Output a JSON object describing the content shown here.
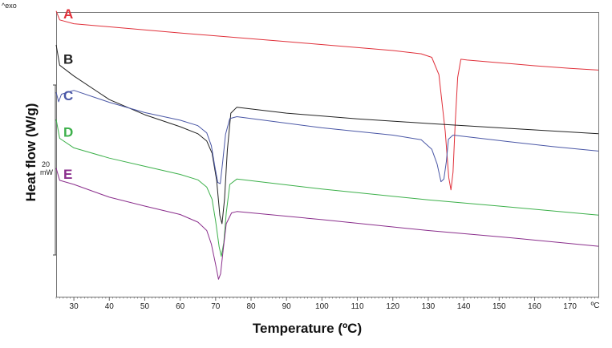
{
  "chart_data": {
    "type": "line",
    "xlabel": "Temperature (ºC)",
    "ylabel": "Heat flow (W/g)",
    "exo_label": "^exo",
    "x_unit_label": "ºC",
    "xlim": [
      25,
      178
    ],
    "x_ticks": [
      30,
      40,
      50,
      60,
      70,
      80,
      90,
      100,
      110,
      120,
      130,
      140,
      150,
      160,
      170
    ],
    "scale_bar": {
      "label_value": "20",
      "label_unit": "mW"
    },
    "series": [
      {
        "name": "A",
        "color": "#e0303a",
        "points": [
          [
            25,
            0.5
          ],
          [
            26,
            3.8
          ],
          [
            30,
            5.2
          ],
          [
            60,
            8.6
          ],
          [
            90,
            11.8
          ],
          [
            120,
            15.1
          ],
          [
            128,
            16.3
          ],
          [
            131,
            17.6
          ],
          [
            133,
            24
          ],
          [
            134.8,
            45
          ],
          [
            135.8,
            62
          ],
          [
            136.4,
            66.5
          ],
          [
            137,
            60
          ],
          [
            137.6,
            42
          ],
          [
            138.3,
            25
          ],
          [
            139.2,
            18.3
          ],
          [
            141,
            18.6
          ],
          [
            150,
            19.6
          ],
          [
            160,
            20.7
          ],
          [
            170,
            21.7
          ],
          [
            178,
            22.3
          ]
        ]
      },
      {
        "name": "B",
        "color": "#222222",
        "points": [
          [
            25,
            13
          ],
          [
            26,
            20.5
          ],
          [
            30,
            24.5
          ],
          [
            40,
            33.2
          ],
          [
            50,
            38.8
          ],
          [
            60,
            43.2
          ],
          [
            65,
            45.8
          ],
          [
            67.5,
            48.5
          ],
          [
            69,
            53
          ],
          [
            70.3,
            63
          ],
          [
            71.2,
            76
          ],
          [
            71.8,
            79
          ],
          [
            72.5,
            70
          ],
          [
            73.3,
            52
          ],
          [
            74.3,
            38.2
          ],
          [
            76,
            36
          ],
          [
            90,
            38.2
          ],
          [
            110,
            40.3
          ],
          [
            130,
            42
          ],
          [
            150,
            43.6
          ],
          [
            178,
            45.8
          ]
        ]
      },
      {
        "name": "C",
        "color": "#4a57a6",
        "points": [
          [
            25,
            30.5
          ],
          [
            25.7,
            34
          ],
          [
            26.5,
            31.2
          ],
          [
            30,
            29.8
          ],
          [
            40,
            34.2
          ],
          [
            50,
            38
          ],
          [
            60,
            40.8
          ],
          [
            65,
            42.8
          ],
          [
            67.5,
            45.5
          ],
          [
            68.8,
            50.2
          ],
          [
            69.8,
            58
          ],
          [
            70.6,
            63.8
          ],
          [
            71.3,
            64.2
          ],
          [
            72,
            56
          ],
          [
            72.8,
            46
          ],
          [
            74,
            40.2
          ],
          [
            76,
            39.5
          ],
          [
            100,
            43.6
          ],
          [
            120,
            46.3
          ],
          [
            128,
            48
          ],
          [
            131,
            51.5
          ],
          [
            132.5,
            57
          ],
          [
            133.6,
            63.5
          ],
          [
            134.4,
            62.5
          ],
          [
            135.1,
            56
          ],
          [
            135.7,
            47.8
          ],
          [
            137,
            46.3
          ],
          [
            150,
            48.3
          ],
          [
            165,
            50.5
          ],
          [
            178,
            52.2
          ]
        ]
      },
      {
        "name": "D",
        "color": "#3cb04a",
        "points": [
          [
            25,
            40.5
          ],
          [
            26,
            47.5
          ],
          [
            30,
            51
          ],
          [
            40,
            54.8
          ],
          [
            50,
            57.8
          ],
          [
            60,
            60.8
          ],
          [
            65,
            62.8
          ],
          [
            67.5,
            65.5
          ],
          [
            69,
            70
          ],
          [
            70,
            78
          ],
          [
            71,
            87.5
          ],
          [
            71.6,
            91
          ],
          [
            72.3,
            86
          ],
          [
            73,
            75
          ],
          [
            74,
            64.5
          ],
          [
            76,
            62.5
          ],
          [
            100,
            66.2
          ],
          [
            130,
            70.2
          ],
          [
            150,
            72.5
          ],
          [
            178,
            75.8
          ]
        ]
      },
      {
        "name": "E",
        "color": "#8a2e8c",
        "points": [
          [
            25,
            58.5
          ],
          [
            26,
            63
          ],
          [
            30,
            64.5
          ],
          [
            40,
            69.2
          ],
          [
            50,
            72.5
          ],
          [
            60,
            75.6
          ],
          [
            65,
            78.4
          ],
          [
            67.5,
            81.5
          ],
          [
            68.8,
            86.5
          ],
          [
            70,
            94
          ],
          [
            70.8,
            99.5
          ],
          [
            71.4,
            97.5
          ],
          [
            72.1,
            89
          ],
          [
            73,
            79
          ],
          [
            74.5,
            75
          ],
          [
            76,
            74.5
          ],
          [
            100,
            77.5
          ],
          [
            130,
            81.5
          ],
          [
            150,
            83.8
          ],
          [
            178,
            87.3
          ]
        ]
      }
    ]
  }
}
